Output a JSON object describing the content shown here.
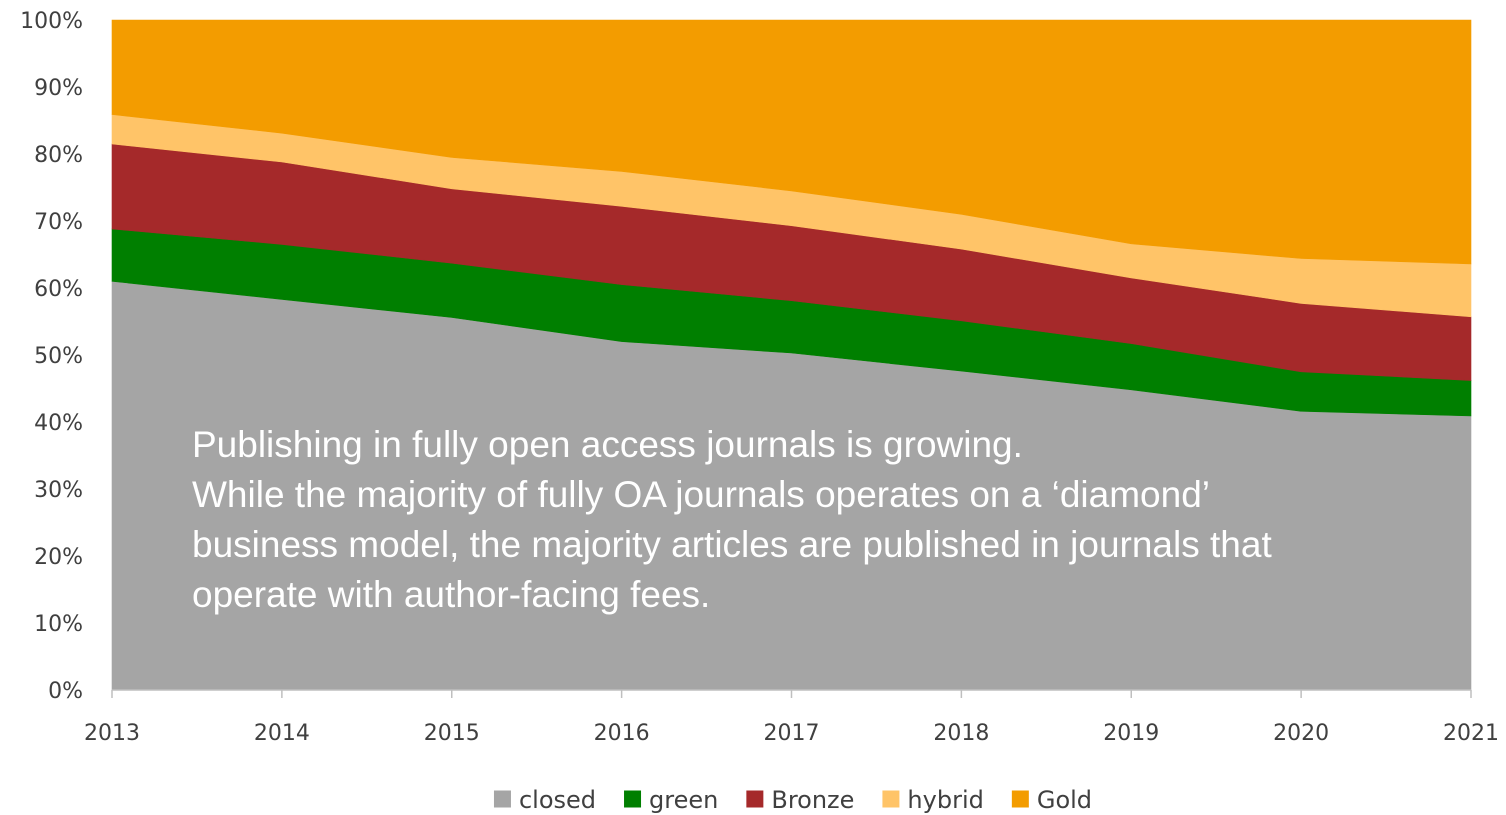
{
  "chart_data": {
    "type": "area",
    "stacked": true,
    "normalized": true,
    "x": [
      "2013",
      "2014",
      "2015",
      "2016",
      "2017",
      "2018",
      "2019",
      "2020",
      "2021"
    ],
    "ylim": [
      0,
      100
    ],
    "yticks": [
      "0%",
      "10%",
      "20%",
      "30%",
      "40%",
      "50%",
      "60%",
      "70%",
      "80%",
      "90%",
      "100%"
    ],
    "grid": false,
    "legend_position": "bottom",
    "series": [
      {
        "name": "closed",
        "color": "#a5a5a5",
        "values": [
          61,
          58.3,
          55.6,
          52,
          50.3,
          47.6,
          44.8,
          41.6,
          40.9
        ]
      },
      {
        "name": "green",
        "color": "#007f00",
        "values": [
          7.8,
          8.2,
          8.1,
          8.5,
          7.8,
          7.5,
          6.9,
          5.9,
          5.3
        ]
      },
      {
        "name": "Bronze",
        "color": "#a5292a",
        "values": [
          12.7,
          12.3,
          11.1,
          11.7,
          11.2,
          10.7,
          9.8,
          10.2,
          9.5
        ]
      },
      {
        "name": "hybrid",
        "color": "#ffc468",
        "values": [
          4.4,
          4.3,
          4.7,
          5.2,
          5.2,
          5.2,
          5.1,
          6.7,
          7.9
        ]
      },
      {
        "name": "Gold",
        "color": "#f39c00",
        "values": [
          14.1,
          16.9,
          20.5,
          22.6,
          25.5,
          29,
          33.4,
          35.6,
          36.4
        ]
      }
    ],
    "annotation": [
      "Publishing in fully open access journals is growing.",
      "While the majority of fully OA journals operates on a ‘diamond’",
      "business model, the majority articles are published in journals that",
      "operate with author-facing fees."
    ]
  }
}
